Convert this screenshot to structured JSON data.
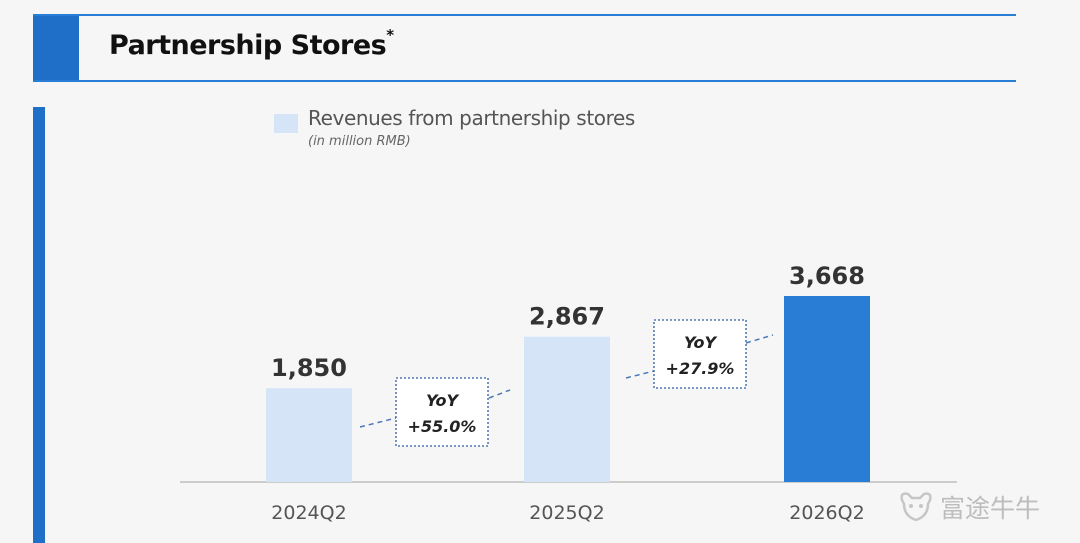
{
  "header": {
    "title": "Partnership Stores",
    "title_mark": "*"
  },
  "legend": {
    "label": "Revenues from partnership stores",
    "unit": "(in million RMB)"
  },
  "watermark": {
    "text": "富途牛牛"
  },
  "colors": {
    "bar_light": "#d5e5f7",
    "bar_highlight": "#2a7dd4",
    "accent": "#1f6fc9"
  },
  "chart_data": {
    "type": "bar",
    "categories": [
      "2024Q2",
      "2025Q2",
      "2026Q2"
    ],
    "values": [
      1850,
      2867,
      3668
    ],
    "value_labels": [
      "1,850",
      "2,867",
      "3,668"
    ],
    "highlight_index": 2,
    "title": "Revenues from partnership stores",
    "ylabel": "(in million RMB)",
    "ylim": [
      0,
      3668
    ],
    "grid": false,
    "annotations": [
      {
        "line1": "YoY",
        "line2": "+55.0%",
        "from": "2024Q2",
        "to": "2025Q2"
      },
      {
        "line1": "YoY",
        "line2": "+27.9%",
        "from": "2025Q2",
        "to": "2026Q2"
      }
    ]
  }
}
